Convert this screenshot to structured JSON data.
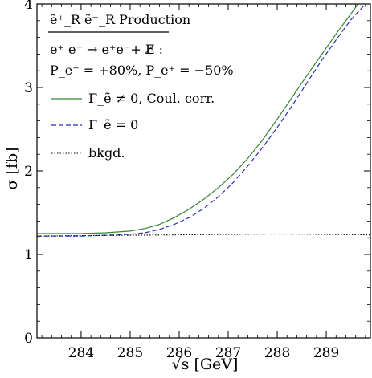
{
  "chart_data": {
    "type": "line",
    "title": "ẽ⁺_R ẽ⁻_R Production",
    "annotations": [
      "e⁺ e⁻ → e⁺e⁻+ E̸ :",
      "P_e⁻ = +80%, P_e⁺ = −50%"
    ],
    "xlabel": "√s [GeV]",
    "ylabel": "σ [fb]",
    "xlim": [
      283.1,
      289.9
    ],
    "ylim": [
      0,
      4
    ],
    "xticks": [
      284,
      285,
      286,
      287,
      288,
      289
    ],
    "yticks": [
      0,
      1,
      2,
      3,
      4
    ],
    "grid": false,
    "legend_position": "top-left",
    "series": [
      {
        "name": "Γ_ẽ ≠ 0, Coul. corr.",
        "style": "solid",
        "color": "#2e8b2e",
        "x": [
          283.1,
          283.5,
          284.0,
          284.5,
          285.0,
          285.3,
          285.6,
          285.9,
          286.2,
          286.5,
          286.8,
          287.1,
          287.4,
          287.7,
          288.0,
          288.3,
          288.6,
          288.9,
          289.2,
          289.5,
          289.65
        ],
        "y": [
          1.25,
          1.25,
          1.25,
          1.26,
          1.28,
          1.31,
          1.36,
          1.44,
          1.54,
          1.66,
          1.8,
          1.96,
          2.15,
          2.37,
          2.62,
          2.88,
          3.14,
          3.39,
          3.64,
          3.88,
          4.0
        ]
      },
      {
        "name": "Γ_ẽ = 0",
        "style": "dashed",
        "color": "#2b2bc8",
        "x": [
          283.1,
          284.0,
          284.5,
          285.0,
          285.3,
          285.6,
          285.9,
          286.2,
          286.5,
          286.8,
          287.1,
          287.4,
          287.7,
          288.0,
          288.3,
          288.6,
          288.9,
          289.2,
          289.5,
          289.8
        ],
        "y": [
          1.22,
          1.22,
          1.23,
          1.24,
          1.26,
          1.3,
          1.36,
          1.44,
          1.55,
          1.69,
          1.86,
          2.06,
          2.28,
          2.52,
          2.78,
          3.05,
          3.32,
          3.57,
          3.81,
          4.0
        ]
      },
      {
        "name": "bkgd.",
        "style": "dotted",
        "color": "#000000",
        "x": [
          283.1,
          284.0,
          285.0,
          286.0,
          287.0,
          288.0,
          289.0,
          289.9
        ],
        "y": [
          1.22,
          1.225,
          1.23,
          1.235,
          1.24,
          1.245,
          1.24,
          1.235
        ]
      }
    ]
  }
}
